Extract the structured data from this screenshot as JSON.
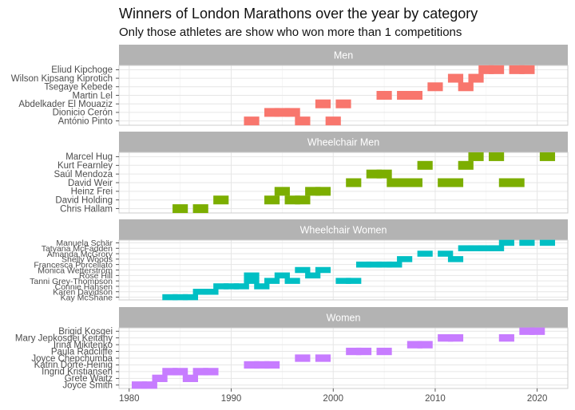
{
  "chart_data": {
    "type": "bar",
    "title": "Winners of London Marathons over the year by category",
    "subtitle": "Only those athletes are show who won more than 1 competitions",
    "xlabel": "",
    "ylabel": "",
    "xlim": [
      1979,
      2023
    ],
    "x_ticks": [
      1980,
      1990,
      2000,
      2010,
      2020
    ],
    "grid": true,
    "legend": "none",
    "panels": [
      {
        "name": "Men",
        "color": "#F8766D",
        "athletes": [
          {
            "name": "Eliud Kipchoge",
            "wins": [
              2015,
              2016,
              2018,
              2019
            ]
          },
          {
            "name": "Wilson Kipsang Kiprotich",
            "wins": [
              2012,
              2014
            ]
          },
          {
            "name": "Tsegaye Kebede",
            "wins": [
              2010,
              2013
            ]
          },
          {
            "name": "Martin Lel",
            "wins": [
              2005,
              2007,
              2008
            ]
          },
          {
            "name": "Abdelkader El Mouaziz",
            "wins": [
              1999,
              2001
            ]
          },
          {
            "name": "Dionicio Cerón",
            "wins": [
              1994,
              1995,
              1996
            ]
          },
          {
            "name": "António Pinto",
            "wins": [
              1992,
              1997,
              2000
            ]
          }
        ]
      },
      {
        "name": "Wheelchair Men",
        "color": "#7CAE00",
        "athletes": [
          {
            "name": "Marcel Hug",
            "wins": [
              2014,
              2016,
              2021
            ]
          },
          {
            "name": "Kurt Fearnley",
            "wins": [
              2009,
              2013
            ]
          },
          {
            "name": "Saúl Mendoza",
            "wins": [
              2004,
              2005
            ]
          },
          {
            "name": "David Weir",
            "wins": [
              2002,
              2006,
              2007,
              2008,
              2011,
              2012,
              2017,
              2018
            ]
          },
          {
            "name": "Heinz Frei",
            "wins": [
              1995,
              1998,
              1999
            ]
          },
          {
            "name": "David Holding",
            "wins": [
              1989,
              1994,
              1996,
              1997
            ]
          },
          {
            "name": "Chris Hallam",
            "wins": [
              1985,
              1987
            ]
          }
        ]
      },
      {
        "name": "Wheelchair Women",
        "color": "#00BFC4",
        "athletes": [
          {
            "name": "Manuela Schär",
            "wins": [
              2017,
              2019,
              2021
            ]
          },
          {
            "name": "Tatyana McFadden",
            "wins": [
              2013,
              2014,
              2015,
              2016
            ]
          },
          {
            "name": "Amanda McGrory",
            "wins": [
              2009,
              2011
            ]
          },
          {
            "name": "Shelly Woods",
            "wins": [
              2007,
              2012
            ]
          },
          {
            "name": "Francesca Porcellato",
            "wins": [
              2003,
              2004,
              2005,
              2006
            ]
          },
          {
            "name": "Monica Wetterström",
            "wins": [
              1997,
              1999
            ]
          },
          {
            "name": "Rose Hill",
            "wins": [
              1992,
              1995,
              1998
            ]
          },
          {
            "name": "Tanni Grey-Thompson",
            "wins": [
              1992,
              1994,
              1996,
              2001,
              2002
            ]
          },
          {
            "name": "Connie Hansen",
            "wins": [
              1989,
              1990,
              1991,
              1993
            ]
          },
          {
            "name": "Karen Davidson",
            "wins": [
              1987,
              1988
            ]
          },
          {
            "name": "Kay McShane",
            "wins": [
              1984,
              1985,
              1986
            ]
          }
        ]
      },
      {
        "name": "Women",
        "color": "#C77CFF",
        "athletes": [
          {
            "name": "Brigid Kosgei",
            "wins": [
              2019,
              2020
            ]
          },
          {
            "name": "Mary Jepkosgei Keitany",
            "wins": [
              2011,
              2012,
              2017
            ]
          },
          {
            "name": "Irina Mikitenko",
            "wins": [
              2008,
              2009
            ]
          },
          {
            "name": "Paula Radcliffe",
            "wins": [
              2002,
              2003,
              2005
            ]
          },
          {
            "name": "Joyce Chepchumba",
            "wins": [
              1997,
              1999
            ]
          },
          {
            "name": "Katrin Dörre-Heinig",
            "wins": [
              1992,
              1993,
              1994
            ]
          },
          {
            "name": "Ingrid Kristiansen",
            "wins": [
              1984,
              1985,
              1987,
              1988
            ]
          },
          {
            "name": "Grete Waitz",
            "wins": [
              1983,
              1986
            ]
          },
          {
            "name": "Joyce Smith",
            "wins": [
              1981,
              1982
            ]
          }
        ]
      }
    ]
  }
}
